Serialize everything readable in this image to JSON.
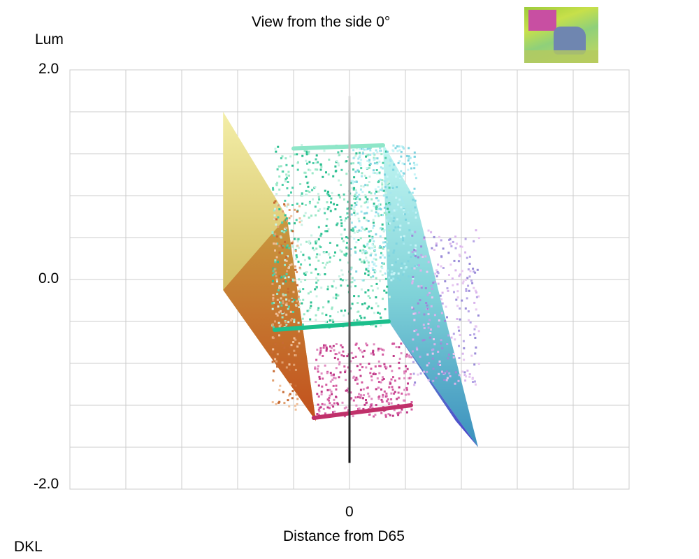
{
  "chart_data": {
    "type": "scatter",
    "title": "View from the side 0°",
    "ylabel": "Lum",
    "xlabel": "Distance from D65",
    "corner_label": "DKL",
    "y_ticks": [
      "2.0",
      "0.0",
      "-2.0"
    ],
    "x_ticks": [
      "0"
    ],
    "ylim": [
      -2.0,
      2.0
    ],
    "xlim": [
      -2.5,
      2.5
    ],
    "grid": true,
    "x_grid_step": 0.5,
    "y_grid_step": 0.4,
    "thumbnail": "photo-thumbnail",
    "surfaces": [
      {
        "name": "yellow-face",
        "colors": [
          "#f3eea8",
          "#d8c46a",
          "#c0a43a"
        ],
        "corners": [
          [
            -1.13,
            1.6
          ],
          [
            -0.56,
            0.6
          ],
          [
            -0.3,
            -1.35
          ],
          [
            -1.13,
            -0.1
          ]
        ]
      },
      {
        "name": "orange-edge",
        "colors": [
          "#c99a40",
          "#c2501d"
        ],
        "corners": [
          [
            -1.13,
            -0.1
          ],
          [
            -0.56,
            0.6
          ],
          [
            -0.3,
            -1.35
          ]
        ]
      },
      {
        "name": "cyan-face",
        "colors": [
          "#c2f6f2",
          "#7fd2d8",
          "#3a8fbd"
        ],
        "corners": [
          [
            0.3,
            1.3
          ],
          [
            0.59,
            0.76
          ],
          [
            1.15,
            -1.6
          ],
          [
            0.35,
            -0.4
          ]
        ]
      },
      {
        "name": "blue-edge",
        "colors": [
          "#5aa6cc",
          "#4a3ec9"
        ],
        "corners": [
          [
            0.35,
            -0.4
          ],
          [
            1.15,
            -1.6
          ],
          [
            0.95,
            -1.35
          ]
        ]
      }
    ],
    "edges": [
      {
        "name": "green-base-edge",
        "color": "#1cbf8c",
        "from": [
          -0.67,
          -0.48
        ],
        "to": [
          0.35,
          -0.4
        ]
      },
      {
        "name": "green-upper-edge",
        "color": "#8ee6c8",
        "from": [
          -0.5,
          1.25
        ],
        "to": [
          0.3,
          1.28
        ]
      },
      {
        "name": "magenta-base-edge",
        "color": "#c0306a",
        "from": [
          -0.32,
          -1.32
        ],
        "to": [
          0.55,
          -1.2
        ]
      }
    ],
    "clusters": [
      {
        "name": "green-cloud",
        "colors": [
          "#9be8c8",
          "#4fcfa8",
          "#2bbf90",
          "#c9f1e4"
        ],
        "x_range": [
          -0.7,
          0.35
        ],
        "y_range": [
          -0.45,
          1.3
        ],
        "count": 700
      },
      {
        "name": "cyan-cloud",
        "colors": [
          "#a6e8ee",
          "#7fd4e0",
          "#c7f4f7"
        ],
        "x_range": [
          0.0,
          0.6
        ],
        "y_range": [
          0.0,
          1.3
        ],
        "count": 300
      },
      {
        "name": "magenta-cloud",
        "colors": [
          "#d45aa0",
          "#c03a88",
          "#e08cc0"
        ],
        "x_range": [
          -0.32,
          0.55
        ],
        "y_range": [
          -1.3,
          -0.6
        ],
        "count": 320
      },
      {
        "name": "lavender-cloud",
        "colors": [
          "#b7a6e6",
          "#d9b4ec",
          "#9a8cd8",
          "#e7c8f0"
        ],
        "x_range": [
          0.55,
          1.15
        ],
        "y_range": [
          -1.0,
          0.5
        ],
        "count": 260
      },
      {
        "name": "orange-cloud",
        "colors": [
          "#e0a070",
          "#c66a32",
          "#f0c09a"
        ],
        "x_range": [
          -0.7,
          -0.45
        ],
        "y_range": [
          -1.25,
          0.8
        ],
        "count": 160
      }
    ],
    "gray_axis": {
      "color_top": "#dddddd",
      "color_bottom": "#111111",
      "y_top": 1.75,
      "y_bottom": -1.75
    }
  }
}
